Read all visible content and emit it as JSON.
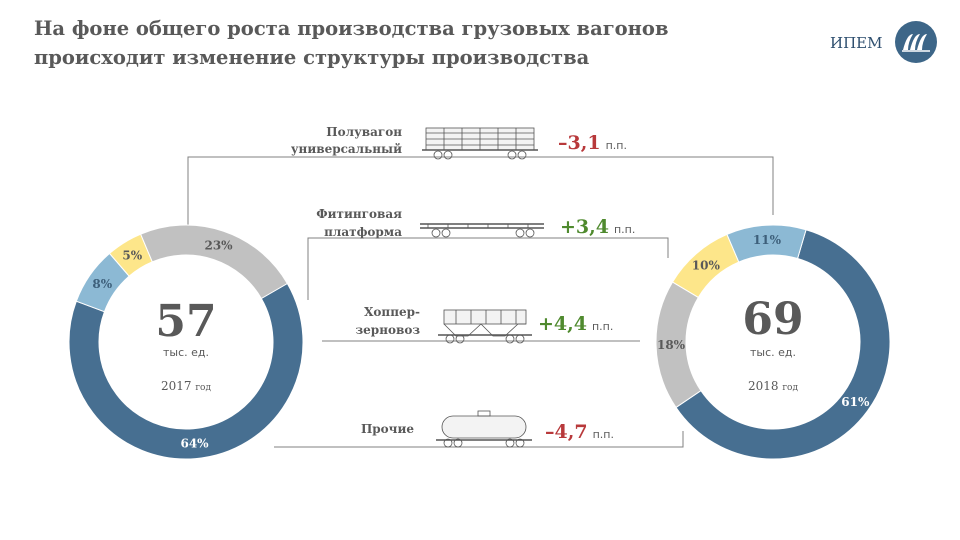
{
  "header": {
    "title_line1": "На фоне общего роста производства грузовых вагонов",
    "title_line2": "происходит изменение структуры производства",
    "brand": "ИПЕМ"
  },
  "colors": {
    "gondola": "#476f91",
    "platform": "#8cb9d4",
    "hopper": "#fde68a",
    "other": "#c1c1c1",
    "positive": "#4f8a2e",
    "negative": "#b8393b",
    "line": "#808080",
    "text": "#595959"
  },
  "chart_data": {
    "type": "donut",
    "categories": [
      "Полувагон универсальный",
      "Фитинговая платформа",
      "Хоппер-зерновоз",
      "Прочие"
    ],
    "donuts": [
      {
        "total": "57",
        "unit": "тыс. ед.",
        "year": "2017",
        "year_suffix": "год",
        "values": [
          64,
          8,
          5,
          23
        ],
        "labels": [
          "64%",
          "8%",
          "5%",
          "23%"
        ]
      },
      {
        "total": "69",
        "unit": "тыс. ед.",
        "year": "2018",
        "year_suffix": "год",
        "values": [
          61,
          11,
          10,
          18
        ],
        "labels": [
          "61%",
          "11%",
          "10%",
          "18%"
        ]
      }
    ],
    "changes": [
      {
        "label_lines": [
          "Полувагон",
          "универсальный"
        ],
        "delta": "–3,1",
        "unit": "п.п.",
        "icon": "gondola-car-icon",
        "sign": "negative"
      },
      {
        "label_lines": [
          "Фитинговая",
          "платформа"
        ],
        "delta": "+3,4",
        "unit": "п.п.",
        "icon": "flat-platform-car-icon",
        "sign": "positive"
      },
      {
        "label_lines": [
          "Хоппер-",
          "зерновоз"
        ],
        "delta": "+4,4",
        "unit": "п.п.",
        "icon": "hopper-car-icon",
        "sign": "positive"
      },
      {
        "label_lines": [
          "Прочие"
        ],
        "delta": "–4,7",
        "unit": "п.п.",
        "icon": "tank-car-icon",
        "sign": "negative"
      }
    ]
  }
}
